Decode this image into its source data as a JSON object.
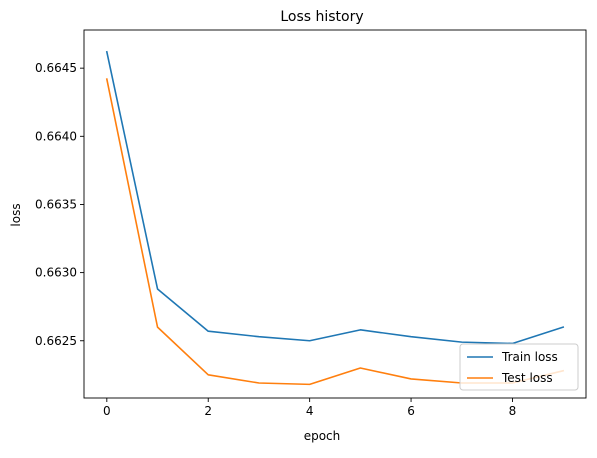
{
  "chart_data": {
    "type": "line",
    "title": "Loss history",
    "xlabel": "epoch",
    "ylabel": "loss",
    "xlim": [
      -0.45,
      9.45
    ],
    "ylim": [
      0.66208,
      0.66478
    ],
    "xticks": [
      0,
      2,
      4,
      6,
      8
    ],
    "xtick_labels": [
      "0",
      "2",
      "4",
      "6",
      "8"
    ],
    "yticks": [
      0.6625,
      0.663,
      0.6635,
      0.664,
      0.6645
    ],
    "ytick_labels": [
      "0.6625",
      "0.6630",
      "0.6635",
      "0.6640",
      "0.6645"
    ],
    "grid": false,
    "legend_position": "lower-right",
    "x": [
      0,
      1,
      2,
      3,
      4,
      5,
      6,
      7,
      8,
      9
    ],
    "series": [
      {
        "name": "Train loss",
        "color": "#1f77b4",
        "values": [
          0.66462,
          0.66288,
          0.66257,
          0.66253,
          0.6625,
          0.66258,
          0.66253,
          0.66249,
          0.66248,
          0.6626
        ]
      },
      {
        "name": "Test loss",
        "color": "#ff7f0e",
        "values": [
          0.66442,
          0.6626,
          0.66225,
          0.66219,
          0.66218,
          0.6623,
          0.66222,
          0.66219,
          0.66219,
          0.66228
        ]
      }
    ]
  }
}
